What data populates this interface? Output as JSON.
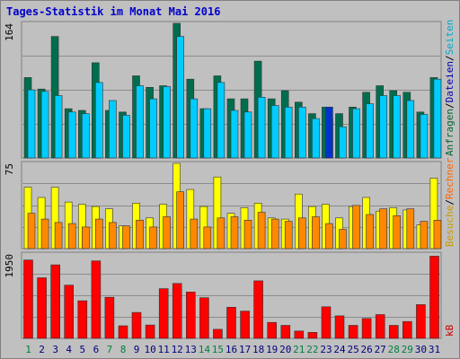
{
  "chart_data": {
    "type": "bar",
    "title": "Tages-Statistik im Monat Mai 2016",
    "categories": [
      "1",
      "2",
      "3",
      "4",
      "5",
      "6",
      "7",
      "8",
      "9",
      "10",
      "11",
      "12",
      "13",
      "14",
      "15",
      "16",
      "17",
      "18",
      "19",
      "20",
      "21",
      "22",
      "23",
      "24",
      "25",
      "26",
      "27",
      "28",
      "29",
      "30",
      "31"
    ],
    "weekend_days": [
      "1",
      "7",
      "8",
      "14",
      "15",
      "21",
      "22",
      "28",
      "29"
    ],
    "panels": [
      {
        "id": "top",
        "ymax_label": "164",
        "ylim": [
          0,
          164
        ],
        "right_labels": [
          {
            "text": "Anfragen",
            "color": "#006633"
          },
          {
            "text": "/",
            "color": "#000000"
          },
          {
            "text": "Dateien",
            "color": "#0000aa"
          },
          {
            "text": "/",
            "color": "#000000"
          },
          {
            "text": "Seiten",
            "color": "#00aacc"
          }
        ],
        "series": [
          {
            "name": "Anfragen",
            "color": "#006e4e",
            "values": [
              98,
              84,
              148,
              60,
              58,
              116,
              58,
              56,
              100,
              86,
              88,
              164,
              96,
              60,
              100,
              72,
              72,
              118,
              72,
              82,
              68,
              54,
              62,
              54,
              62,
              80,
              88,
              82,
              80,
              56,
              98
            ]
          },
          {
            "name": "Seiten",
            "color": "#00ccff",
            "values": [
              83,
              81,
              76,
              56,
              54,
              92,
              70,
              52,
              88,
              72,
              87,
              148,
              72,
              60,
              92,
              58,
              56,
              74,
              64,
              62,
              62,
              48,
              48,
              38,
              60,
              66,
              76,
              76,
              70,
              53,
              96
            ]
          },
          {
            "name": "Dateien",
            "color": "#0033cc",
            "values": [
              0,
              0,
              0,
              0,
              0,
              0,
              0,
              0,
              0,
              0,
              0,
              0,
              0,
              0,
              0,
              0,
              0,
              0,
              0,
              0,
              0,
              0,
              62,
              0,
              0,
              0,
              0,
              0,
              0,
              0,
              0
            ]
          }
        ]
      },
      {
        "id": "middle",
        "ymax_label": "75",
        "ylim": [
          0,
          75
        ],
        "right_labels": [
          {
            "text": "Besuche",
            "color": "#cc9900"
          },
          {
            "text": "/",
            "color": "#000000"
          },
          {
            "text": "Rechner",
            "color": "#ff6600"
          }
        ],
        "series": [
          {
            "name": "Besuche",
            "color": "#ffff00",
            "values": [
              54,
              45,
              54,
              41,
              39,
              37,
              35,
              20,
              40,
              27,
              39,
              75,
              52,
              37,
              63,
              31,
              36,
              40,
              27,
              26,
              48,
              37,
              39,
              27,
              37,
              45,
              33,
              36,
              34,
              21,
              62
            ]
          },
          {
            "name": "Rechner",
            "color": "#ff8800",
            "values": [
              31,
              26,
              23,
              22,
              19,
              26,
              23,
              20,
              25,
              19,
              28,
              50,
              26,
              19,
              27,
              28,
              25,
              32,
              26,
              24,
              27,
              28,
              22,
              17,
              38,
              30,
              35,
              29,
              35,
              24,
              25
            ]
          }
        ]
      },
      {
        "id": "bottom",
        "ymax_label": "1950",
        "ylim": [
          0,
          1950
        ],
        "right_labels": [
          {
            "text": "kB",
            "color": "#cc0000"
          }
        ],
        "series": [
          {
            "name": "kB",
            "color": "#ff0000",
            "values": [
              1810,
              1400,
              1700,
              1230,
              870,
              1790,
              950,
              290,
              600,
              310,
              1150,
              1270,
              1070,
              940,
              210,
              720,
              630,
              1330,
              370,
              300,
              170,
              140,
              730,
              520,
              300,
              460,
              550,
              300,
              390,
              780,
              1900
            ]
          }
        ]
      }
    ]
  }
}
